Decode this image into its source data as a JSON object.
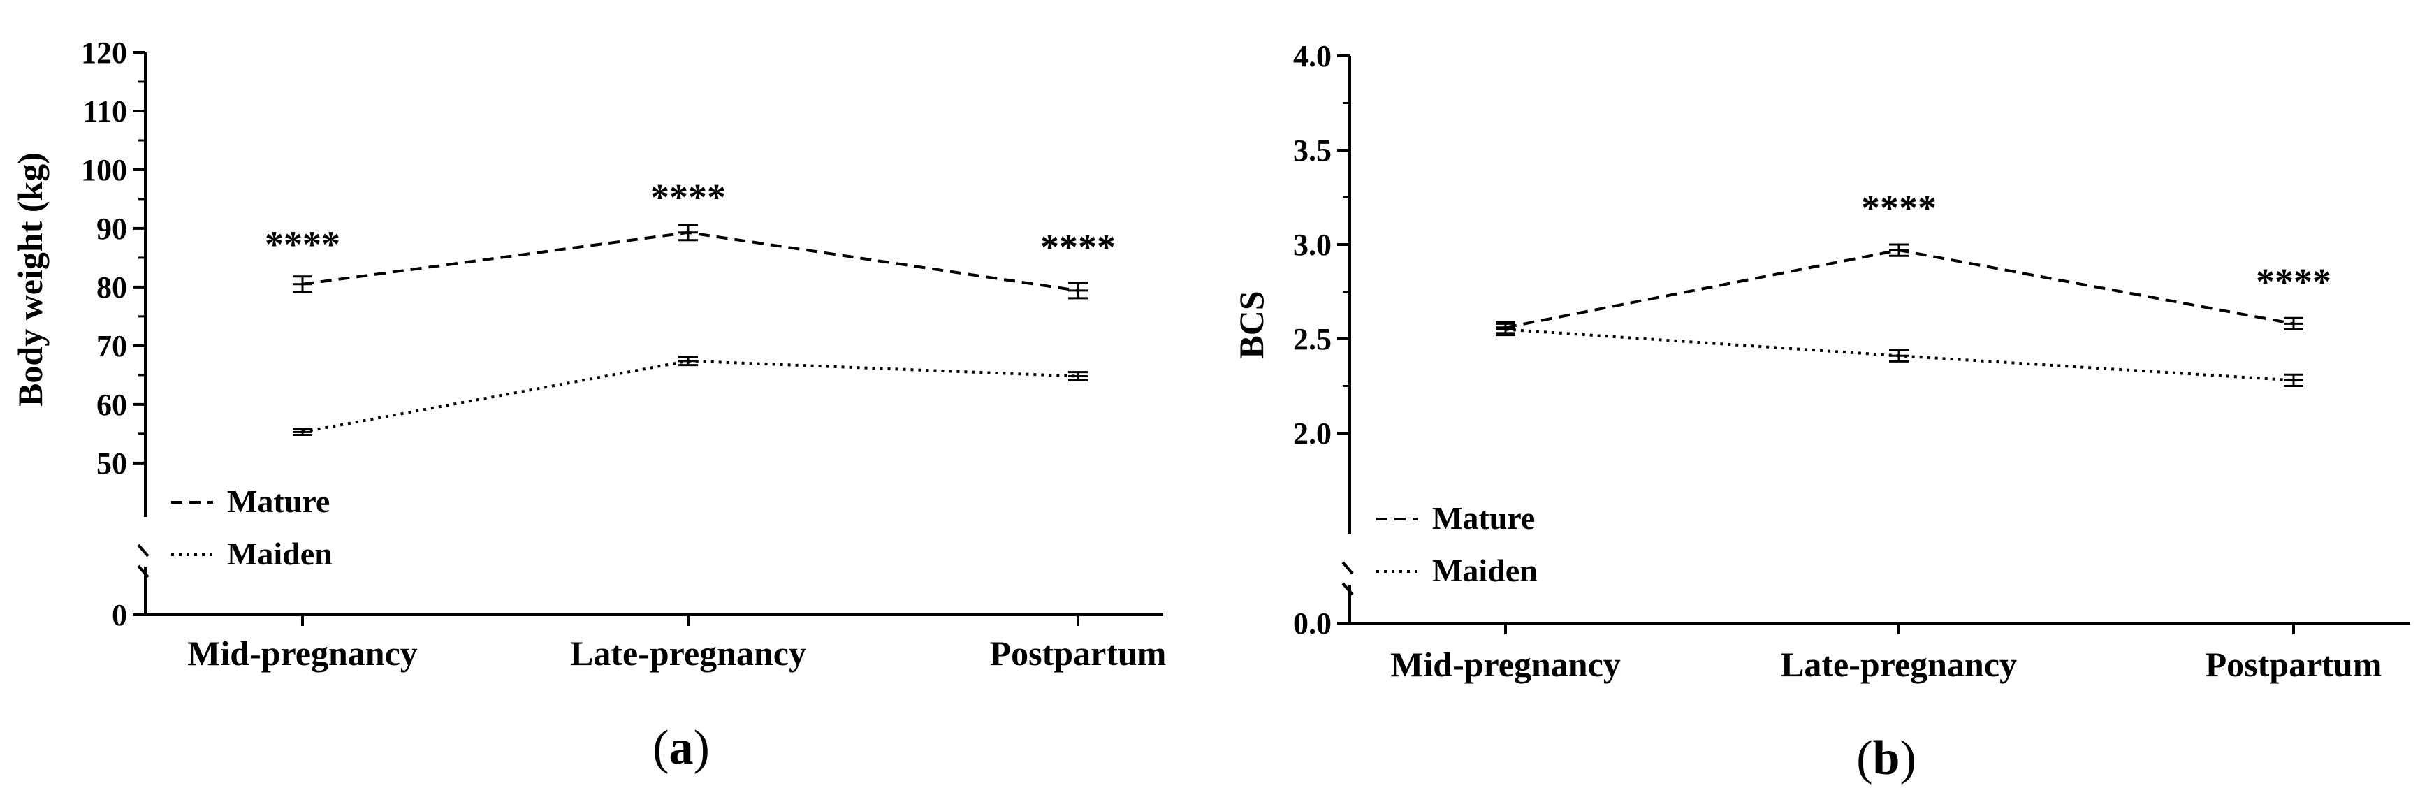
{
  "chart_data": [
    {
      "type": "line",
      "panel_label": {
        "open": "(",
        "letter": "a",
        "close": ")"
      },
      "ylabel": "Body weight (kg)",
      "xlabel": "",
      "categories": [
        "Mid-pregnancy",
        "Late-pregnancy",
        "Postpartum"
      ],
      "y_axis": {
        "broken": true,
        "lower_ticks": [
          0
        ],
        "upper_range": [
          42,
          120
        ],
        "upper_ticks": [
          50,
          60,
          70,
          80,
          90,
          100,
          110,
          120
        ]
      },
      "series": [
        {
          "name": "Mature",
          "line_style": "dashed",
          "values": [
            80.5,
            89.3,
            79.4
          ],
          "errors": [
            1.3,
            1.3,
            1.3
          ]
        },
        {
          "name": "Maiden",
          "line_style": "dotted",
          "values": [
            55.3,
            67.4,
            64.8
          ],
          "errors": [
            0.5,
            0.7,
            0.7
          ]
        }
      ],
      "annotations": [
        {
          "category": "Mid-pregnancy",
          "text": "****",
          "value": 87.5
        },
        {
          "category": "Late-pregnancy",
          "text": "****",
          "value": 95.5
        },
        {
          "category": "Postpartum",
          "text": "****",
          "value": 87
        }
      ],
      "legend": {
        "position": "bottom-left",
        "entries": [
          "Mature",
          "Maiden"
        ]
      }
    },
    {
      "type": "line",
      "panel_label": {
        "open": "(",
        "letter": "b",
        "close": ")"
      },
      "ylabel": "BCS",
      "xlabel": "",
      "categories": [
        "Mid-pregnancy",
        "Late-pregnancy",
        "Postpartum"
      ],
      "y_axis": {
        "broken": true,
        "lower_ticks": [
          0.0
        ],
        "upper_range": [
          1.5,
          4.0
        ],
        "upper_ticks": [
          2.0,
          2.5,
          3.0,
          3.5,
          4.0
        ],
        "decimals": 1
      },
      "series": [
        {
          "name": "Mature",
          "line_style": "dashed",
          "values": [
            2.56,
            2.97,
            2.58
          ],
          "errors": [
            0.03,
            0.03,
            0.03
          ]
        },
        {
          "name": "Maiden",
          "line_style": "dotted",
          "values": [
            2.55,
            2.41,
            2.28
          ],
          "errors": [
            0.03,
            0.03,
            0.03
          ]
        }
      ],
      "annotations": [
        {
          "category": "Late-pregnancy",
          "text": "****",
          "value": 3.2
        },
        {
          "category": "Postpartum",
          "text": "****",
          "value": 2.81
        }
      ],
      "legend": {
        "position": "bottom-left",
        "entries": [
          "Mature",
          "Maiden"
        ]
      }
    }
  ]
}
